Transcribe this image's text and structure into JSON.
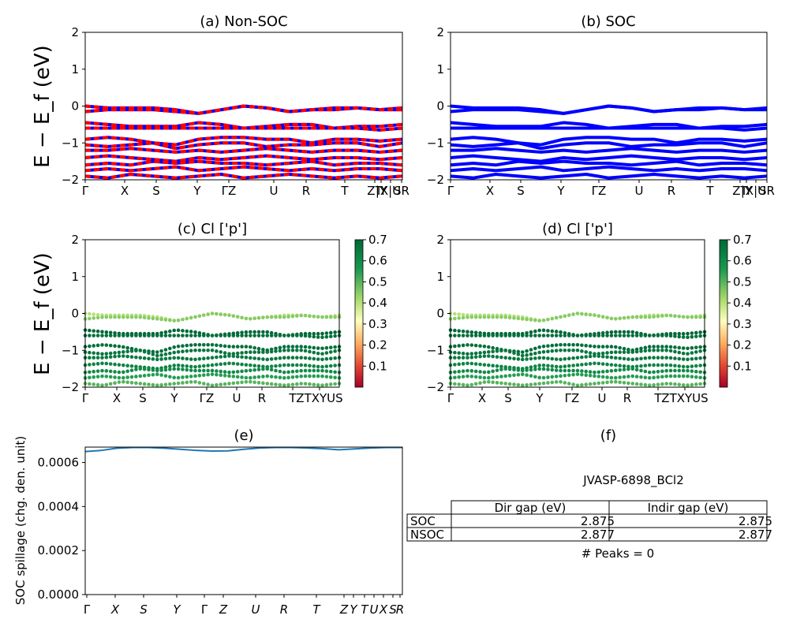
{
  "chart_data": [
    {
      "panel": "a",
      "type": "line",
      "title": "(a) Non-SOC",
      "ylabel": "E − E_f (eV)",
      "ylim": [
        -2,
        2
      ],
      "yticks": [
        "2",
        "1",
        "0",
        "−1",
        "−2"
      ],
      "xlabels": [
        "Γ",
        "X",
        "S",
        "Y",
        "ΓZ",
        "U",
        "R",
        "T",
        "ZT",
        "|Y",
        "X|U",
        "SR"
      ],
      "series": [
        {
          "values": [
            0.0,
            -0.05,
            -0.05,
            -0.05,
            -0.1,
            -0.2,
            -0.1,
            0.0,
            -0.05,
            -0.15,
            -0.1,
            -0.05,
            -0.05,
            -0.1,
            -0.05
          ]
        },
        {
          "values": [
            -0.15,
            -0.1,
            -0.1,
            -0.1,
            -0.15,
            -0.2,
            -0.1,
            0.0,
            -0.05,
            -0.15,
            -0.1,
            -0.1,
            -0.05,
            -0.1,
            -0.1
          ]
        },
        {
          "values": [
            -0.45,
            -0.5,
            -0.55,
            -0.55,
            -0.55,
            -0.45,
            -0.5,
            -0.6,
            -0.55,
            -0.5,
            -0.5,
            -0.6,
            -0.55,
            -0.55,
            -0.5
          ]
        },
        {
          "values": [
            -0.6,
            -0.6,
            -0.6,
            -0.6,
            -0.6,
            -0.6,
            -0.6,
            -0.6,
            -0.6,
            -0.6,
            -0.6,
            -0.6,
            -0.6,
            -0.65,
            -0.6
          ]
        },
        {
          "values": [
            -0.9,
            -0.85,
            -0.9,
            -1.0,
            -1.05,
            -0.9,
            -0.85,
            -0.85,
            -0.9,
            -0.9,
            -1.0,
            -0.9,
            -0.9,
            -0.95,
            -0.9
          ]
        },
        {
          "values": [
            -1.05,
            -1.1,
            -1.05,
            -1.0,
            -1.15,
            -1.05,
            -1.0,
            -1.0,
            -1.1,
            -1.05,
            -1.05,
            -1.0,
            -1.0,
            -1.1,
            -1.0
          ]
        },
        {
          "values": [
            -1.2,
            -1.2,
            -1.15,
            -1.2,
            -1.25,
            -1.2,
            -1.25,
            -1.2,
            -1.15,
            -1.2,
            -1.25,
            -1.2,
            -1.2,
            -1.25,
            -1.2
          ]
        },
        {
          "values": [
            -1.4,
            -1.35,
            -1.4,
            -1.45,
            -1.5,
            -1.4,
            -1.45,
            -1.4,
            -1.35,
            -1.4,
            -1.45,
            -1.4,
            -1.4,
            -1.45,
            -1.4
          ]
        },
        {
          "values": [
            -1.6,
            -1.55,
            -1.6,
            -1.5,
            -1.55,
            -1.5,
            -1.55,
            -1.55,
            -1.6,
            -1.55,
            -1.5,
            -1.6,
            -1.55,
            -1.55,
            -1.6
          ]
        },
        {
          "values": [
            -1.75,
            -1.7,
            -1.75,
            -1.7,
            -1.65,
            -1.75,
            -1.7,
            -1.65,
            -1.7,
            -1.75,
            -1.7,
            -1.75,
            -1.7,
            -1.7,
            -1.75
          ]
        },
        {
          "values": [
            -1.9,
            -1.95,
            -1.85,
            -1.9,
            -1.95,
            -1.9,
            -1.85,
            -1.95,
            -1.9,
            -1.85,
            -1.9,
            -1.95,
            -1.9,
            -1.95,
            -1.9
          ]
        }
      ]
    },
    {
      "panel": "b",
      "type": "line",
      "title": "(b) SOC",
      "ylim": [
        -2,
        2
      ],
      "yticks": [
        "2",
        "1",
        "0",
        "−1",
        "−2"
      ],
      "xlabels": [
        "Γ",
        "X",
        "S",
        "Y",
        "ΓZ",
        "U",
        "R",
        "T",
        "ZT",
        "|Y",
        "X|U",
        "SR"
      ],
      "series": [
        {
          "values": [
            0.0,
            -0.05,
            -0.05,
            -0.05,
            -0.1,
            -0.2,
            -0.1,
            0.0,
            -0.05,
            -0.15,
            -0.1,
            -0.05,
            -0.05,
            -0.1,
            -0.05
          ]
        },
        {
          "values": [
            -0.15,
            -0.1,
            -0.1,
            -0.1,
            -0.15,
            -0.2,
            -0.1,
            0.0,
            -0.05,
            -0.15,
            -0.1,
            -0.1,
            -0.05,
            -0.1,
            -0.1
          ]
        },
        {
          "values": [
            -0.45,
            -0.5,
            -0.55,
            -0.55,
            -0.55,
            -0.45,
            -0.5,
            -0.6,
            -0.55,
            -0.5,
            -0.5,
            -0.6,
            -0.55,
            -0.55,
            -0.5
          ]
        },
        {
          "values": [
            -0.6,
            -0.6,
            -0.6,
            -0.6,
            -0.6,
            -0.6,
            -0.6,
            -0.6,
            -0.6,
            -0.6,
            -0.6,
            -0.6,
            -0.6,
            -0.65,
            -0.6
          ]
        },
        {
          "values": [
            -0.9,
            -0.85,
            -0.9,
            -1.0,
            -1.05,
            -0.9,
            -0.85,
            -0.85,
            -0.9,
            -0.9,
            -1.0,
            -0.9,
            -0.9,
            -0.95,
            -0.9
          ]
        },
        {
          "values": [
            -1.05,
            -1.1,
            -1.05,
            -1.0,
            -1.15,
            -1.05,
            -1.0,
            -1.0,
            -1.1,
            -1.05,
            -1.05,
            -1.0,
            -1.0,
            -1.1,
            -1.0
          ]
        },
        {
          "values": [
            -1.2,
            -1.2,
            -1.15,
            -1.2,
            -1.25,
            -1.2,
            -1.25,
            -1.2,
            -1.15,
            -1.2,
            -1.25,
            -1.2,
            -1.2,
            -1.25,
            -1.2
          ]
        },
        {
          "values": [
            -1.4,
            -1.35,
            -1.4,
            -1.45,
            -1.5,
            -1.4,
            -1.45,
            -1.4,
            -1.35,
            -1.4,
            -1.45,
            -1.4,
            -1.4,
            -1.45,
            -1.4
          ]
        },
        {
          "values": [
            -1.6,
            -1.55,
            -1.6,
            -1.5,
            -1.55,
            -1.5,
            -1.55,
            -1.55,
            -1.6,
            -1.55,
            -1.5,
            -1.6,
            -1.55,
            -1.55,
            -1.6
          ]
        },
        {
          "values": [
            -1.75,
            -1.7,
            -1.75,
            -1.7,
            -1.65,
            -1.75,
            -1.7,
            -1.65,
            -1.7,
            -1.75,
            -1.7,
            -1.75,
            -1.7,
            -1.7,
            -1.75
          ]
        },
        {
          "values": [
            -1.9,
            -1.95,
            -1.85,
            -1.9,
            -1.95,
            -1.9,
            -1.85,
            -1.95,
            -1.9,
            -1.85,
            -1.9,
            -1.95,
            -1.9,
            -1.95,
            -1.9
          ]
        }
      ]
    },
    {
      "panel": "c",
      "type": "scatter",
      "title": "(c)  Cl ['p']",
      "ylabel": "E − E_f (eV)",
      "ylim": [
        -2,
        2
      ],
      "yticks": [
        "2",
        "1",
        "0",
        "−1",
        "−2"
      ],
      "xlabels": [
        "Γ",
        "X",
        "S",
        "Y",
        "ΓZ",
        "U",
        "R",
        "T",
        "ZTXYUS"
      ],
      "colorbar": {
        "ticks": [
          "0.7",
          "0.6",
          "0.5",
          "0.4",
          "0.3",
          "0.2",
          "0.1"
        ],
        "range": [
          0,
          0.7
        ]
      },
      "series": [
        {
          "values": [
            0.0,
            -0.05,
            -0.05,
            -0.05,
            -0.1,
            -0.2,
            -0.1,
            0.0,
            -0.05,
            -0.15,
            -0.1,
            -0.05,
            -0.05,
            -0.1,
            -0.05
          ],
          "weight": 0.4
        },
        {
          "values": [
            -0.15,
            -0.1,
            -0.1,
            -0.1,
            -0.15,
            -0.2,
            -0.1,
            0.0,
            -0.05,
            -0.15,
            -0.1,
            -0.1,
            -0.05,
            -0.1,
            -0.1
          ],
          "weight": 0.45
        },
        {
          "values": [
            -0.45,
            -0.5,
            -0.55,
            -0.55,
            -0.55,
            -0.45,
            -0.5,
            -0.6,
            -0.55,
            -0.5,
            -0.5,
            -0.6,
            -0.55,
            -0.55,
            -0.5
          ],
          "weight": 0.7
        },
        {
          "values": [
            -0.6,
            -0.6,
            -0.6,
            -0.6,
            -0.6,
            -0.6,
            -0.6,
            -0.6,
            -0.6,
            -0.6,
            -0.6,
            -0.6,
            -0.6,
            -0.65,
            -0.6
          ],
          "weight": 0.68
        },
        {
          "values": [
            -0.9,
            -0.85,
            -0.9,
            -1.0,
            -1.05,
            -0.9,
            -0.85,
            -0.85,
            -0.9,
            -0.9,
            -1.0,
            -0.9,
            -0.9,
            -0.95,
            -0.9
          ],
          "weight": 0.68
        },
        {
          "values": [
            -1.05,
            -1.1,
            -1.05,
            -1.0,
            -1.15,
            -1.05,
            -1.0,
            -1.0,
            -1.1,
            -1.05,
            -1.05,
            -1.0,
            -1.0,
            -1.1,
            -1.0
          ],
          "weight": 0.66
        },
        {
          "values": [
            -1.2,
            -1.2,
            -1.15,
            -1.2,
            -1.25,
            -1.2,
            -1.25,
            -1.2,
            -1.15,
            -1.2,
            -1.25,
            -1.2,
            -1.2,
            -1.25,
            -1.2
          ],
          "weight": 0.65
        },
        {
          "values": [
            -1.4,
            -1.35,
            -1.4,
            -1.45,
            -1.5,
            -1.4,
            -1.45,
            -1.4,
            -1.35,
            -1.4,
            -1.45,
            -1.4,
            -1.4,
            -1.45,
            -1.4
          ],
          "weight": 0.62
        },
        {
          "values": [
            -1.6,
            -1.55,
            -1.6,
            -1.5,
            -1.55,
            -1.5,
            -1.55,
            -1.55,
            -1.6,
            -1.55,
            -1.5,
            -1.6,
            -1.55,
            -1.55,
            -1.6
          ],
          "weight": 0.6
        },
        {
          "values": [
            -1.75,
            -1.7,
            -1.75,
            -1.7,
            -1.65,
            -1.75,
            -1.7,
            -1.65,
            -1.7,
            -1.75,
            -1.7,
            -1.75,
            -1.7,
            -1.7,
            -1.75
          ],
          "weight": 0.55
        },
        {
          "values": [
            -1.9,
            -1.95,
            -1.85,
            -1.9,
            -1.95,
            -1.9,
            -1.85,
            -1.95,
            -1.9,
            -1.85,
            -1.9,
            -1.95,
            -1.9,
            -1.95,
            -1.9
          ],
          "weight": 0.5
        }
      ]
    },
    {
      "panel": "d",
      "type": "scatter",
      "title": "(d) Cl ['p']",
      "ylim": [
        -2,
        2
      ],
      "yticks": [
        "2",
        "1",
        "0",
        "−1",
        "−2"
      ],
      "xlabels": [
        "Γ",
        "X",
        "S",
        "Y",
        "ΓZ",
        "U",
        "R",
        "T",
        "ZTXYUS"
      ],
      "colorbar": {
        "ticks": [
          "0.7",
          "0.6",
          "0.5",
          "0.4",
          "0.3",
          "0.2",
          "0.1"
        ],
        "range": [
          0,
          0.7
        ]
      },
      "series": [
        {
          "values": [
            0.0,
            -0.05,
            -0.05,
            -0.05,
            -0.1,
            -0.2,
            -0.1,
            0.0,
            -0.05,
            -0.15,
            -0.1,
            -0.05,
            -0.05,
            -0.1,
            -0.05
          ],
          "weight": 0.4
        },
        {
          "values": [
            -0.15,
            -0.1,
            -0.1,
            -0.1,
            -0.15,
            -0.2,
            -0.1,
            0.0,
            -0.05,
            -0.15,
            -0.1,
            -0.1,
            -0.05,
            -0.1,
            -0.1
          ],
          "weight": 0.45
        },
        {
          "values": [
            -0.45,
            -0.5,
            -0.55,
            -0.55,
            -0.55,
            -0.45,
            -0.5,
            -0.6,
            -0.55,
            -0.5,
            -0.5,
            -0.6,
            -0.55,
            -0.55,
            -0.5
          ],
          "weight": 0.7
        },
        {
          "values": [
            -0.6,
            -0.6,
            -0.6,
            -0.6,
            -0.6,
            -0.6,
            -0.6,
            -0.6,
            -0.6,
            -0.6,
            -0.6,
            -0.6,
            -0.6,
            -0.65,
            -0.6
          ],
          "weight": 0.68
        },
        {
          "values": [
            -0.9,
            -0.85,
            -0.9,
            -1.0,
            -1.05,
            -0.9,
            -0.85,
            -0.85,
            -0.9,
            -0.9,
            -1.0,
            -0.9,
            -0.9,
            -0.95,
            -0.9
          ],
          "weight": 0.68
        },
        {
          "values": [
            -1.05,
            -1.1,
            -1.05,
            -1.0,
            -1.15,
            -1.05,
            -1.0,
            -1.0,
            -1.1,
            -1.05,
            -1.05,
            -1.0,
            -1.0,
            -1.1,
            -1.0
          ],
          "weight": 0.66
        },
        {
          "values": [
            -1.2,
            -1.2,
            -1.15,
            -1.2,
            -1.25,
            -1.2,
            -1.25,
            -1.2,
            -1.15,
            -1.2,
            -1.25,
            -1.2,
            -1.2,
            -1.25,
            -1.2
          ],
          "weight": 0.65
        },
        {
          "values": [
            -1.4,
            -1.35,
            -1.4,
            -1.45,
            -1.5,
            -1.4,
            -1.45,
            -1.4,
            -1.35,
            -1.4,
            -1.45,
            -1.4,
            -1.4,
            -1.45,
            -1.4
          ],
          "weight": 0.62
        },
        {
          "values": [
            -1.6,
            -1.55,
            -1.6,
            -1.5,
            -1.55,
            -1.5,
            -1.55,
            -1.55,
            -1.6,
            -1.55,
            -1.5,
            -1.6,
            -1.55,
            -1.55,
            -1.6
          ],
          "weight": 0.6
        },
        {
          "values": [
            -1.75,
            -1.7,
            -1.75,
            -1.7,
            -1.65,
            -1.75,
            -1.7,
            -1.65,
            -1.7,
            -1.75,
            -1.7,
            -1.75,
            -1.7,
            -1.7,
            -1.75
          ],
          "weight": 0.55
        },
        {
          "values": [
            -1.9,
            -1.95,
            -1.85,
            -1.9,
            -1.95,
            -1.9,
            -1.85,
            -1.95,
            -1.9,
            -1.85,
            -1.9,
            -1.95,
            -1.9,
            -1.95,
            -1.9
          ],
          "weight": 0.5
        }
      ]
    },
    {
      "panel": "e",
      "type": "line",
      "title": "(e)",
      "ylabel": "SOC spillage (chg. den. unit)",
      "ylim": [
        0,
        0.00067
      ],
      "yticks": [
        "0.0000",
        "0.0002",
        "0.0004",
        "0.0006"
      ],
      "xlabels": [
        "Γ",
        "X",
        "S",
        "Y",
        "Γ",
        "Z",
        "U",
        "R",
        "T",
        "Z",
        "Y",
        "T",
        "U",
        "X",
        "S",
        "R"
      ],
      "series": [
        {
          "values": [
            0.00065,
            0.000655,
            0.000665,
            0.000668,
            0.000668,
            0.000665,
            0.00066,
            0.000655,
            0.000652,
            0.000653,
            0.00066,
            0.000666,
            0.000668,
            0.000668,
            0.000666,
            0.000663,
            0.000658,
            0.000662,
            0.000666,
            0.000668,
            0.000668
          ],
          "color": "#1f77b4"
        }
      ]
    },
    {
      "panel": "f",
      "type": "table",
      "title": "(f)",
      "material": "JVASP-6898_BCl2",
      "columns": [
        "Dir gap (eV)",
        "Indir gap (eV)"
      ],
      "rows": [
        {
          "label": "SOC",
          "cells": [
            "2.875",
            "2.875"
          ]
        },
        {
          "label": "NSOC",
          "cells": [
            "2.877",
            "2.877"
          ]
        }
      ],
      "peaks": "# Peaks = 0"
    }
  ],
  "colors": {
    "non_soc_red": "#ff0000",
    "soc_blue": "#0000ff",
    "spillage": "#1f77b4"
  }
}
